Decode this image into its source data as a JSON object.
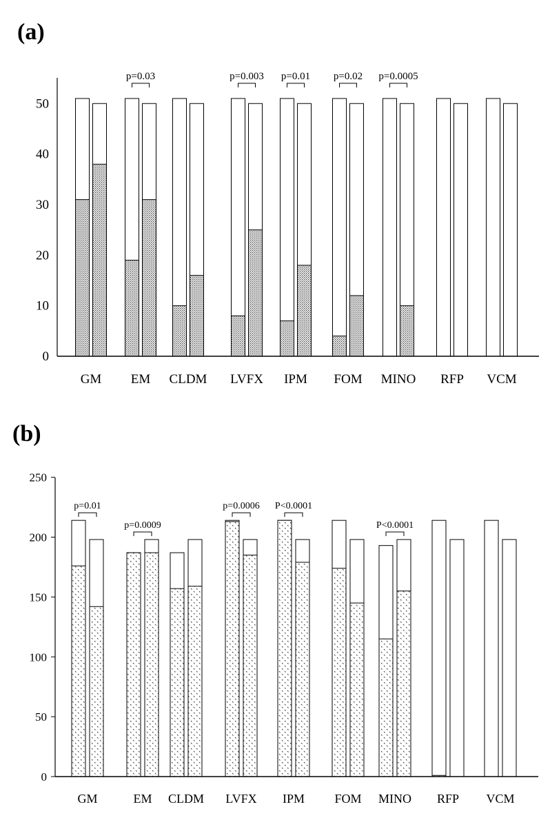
{
  "chart_data": [
    {
      "type": "bar",
      "panel_label": "(a)",
      "categories": [
        "GM",
        "EM",
        "CLDM",
        "LVFX",
        "IPM",
        "FOM",
        "MINO",
        "RFP",
        "VCM"
      ],
      "y_ticks": [
        "0",
        "10",
        "20",
        "30",
        "40",
        "50"
      ],
      "ylim": [
        0,
        55
      ],
      "grid": false,
      "stacked": true,
      "bars_per_category": 2,
      "totals": [
        [
          51,
          50
        ],
        [
          51,
          50
        ],
        [
          51,
          50
        ],
        [
          51,
          50
        ],
        [
          51,
          50
        ],
        [
          51,
          50
        ],
        [
          51,
          50
        ],
        [
          51,
          50
        ],
        [
          51,
          50
        ]
      ],
      "shaded": [
        [
          31,
          38
        ],
        [
          19,
          31
        ],
        [
          10,
          16
        ],
        [
          8,
          25
        ],
        [
          7,
          18
        ],
        [
          4,
          12
        ],
        [
          0,
          10
        ],
        [
          0,
          0
        ],
        [
          0,
          0
        ]
      ],
      "pvalues": [
        {
          "category": "EM",
          "label": "p=0.03"
        },
        {
          "category": "LVFX",
          "label": "p=0.003"
        },
        {
          "category": "IPM",
          "label": "p=0.01"
        },
        {
          "category": "FOM",
          "label": "p=0.02"
        },
        {
          "category": "MINO",
          "label": "p=0.0005"
        }
      ]
    },
    {
      "type": "bar",
      "panel_label": "(b)",
      "categories": [
        "GM",
        "EM",
        "CLDM",
        "LVFX",
        "IPM",
        "FOM",
        "MINO",
        "RFP",
        "VCM"
      ],
      "y_ticks": [
        "0",
        "50",
        "100",
        "150",
        "200",
        "250"
      ],
      "ylim": [
        0,
        250
      ],
      "grid": false,
      "stacked": true,
      "bars_per_category": 2,
      "totals": [
        [
          214,
          198
        ],
        [
          187,
          198
        ],
        [
          187,
          198
        ],
        [
          214,
          198
        ],
        [
          214,
          198
        ],
        [
          214,
          198
        ],
        [
          193,
          198
        ],
        [
          214,
          198
        ],
        [
          214,
          198
        ]
      ],
      "shaded": [
        [
          176,
          142
        ],
        [
          187,
          187
        ],
        [
          157,
          159
        ],
        [
          213,
          185
        ],
        [
          214,
          179
        ],
        [
          174,
          145
        ],
        [
          115,
          155
        ],
        [
          1,
          0
        ],
        [
          0,
          0
        ]
      ],
      "pvalues": [
        {
          "category": "GM",
          "label": "p=0.01"
        },
        {
          "category": "EM",
          "label": "p=0.0009"
        },
        {
          "category": "LVFX",
          "label": "p=0.0006"
        },
        {
          "category": "IPM",
          "label": "P<0.0001"
        },
        {
          "category": "MINO",
          "label": "P<0.0001"
        }
      ]
    }
  ]
}
